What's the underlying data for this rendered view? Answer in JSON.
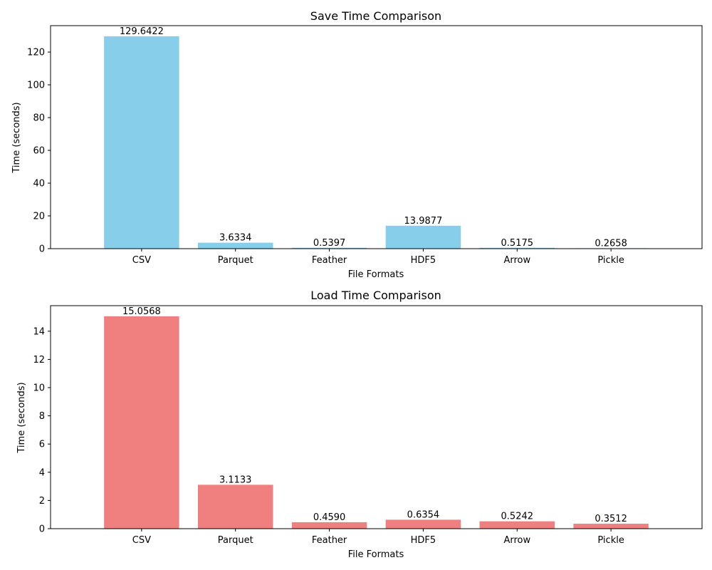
{
  "chart_data": [
    {
      "type": "bar",
      "title": "Save Time Comparison",
      "xlabel": "File Formats",
      "ylabel": "Time (seconds)",
      "categories": [
        "CSV",
        "Parquet",
        "Feather",
        "HDF5",
        "Arrow",
        "Pickle"
      ],
      "values": [
        129.6422,
        3.6334,
        0.5397,
        13.9877,
        0.5175,
        0.2658
      ],
      "value_labels": [
        "129.6422",
        "3.6334",
        "0.5397",
        "13.9877",
        "0.5175",
        "0.2658"
      ],
      "ylim": [
        0,
        136.12
      ],
      "yticks": [
        0,
        20,
        40,
        60,
        80,
        100,
        120
      ],
      "ytick_labels": [
        "0",
        "20",
        "40",
        "60",
        "80",
        "100",
        "120"
      ],
      "bar_color": "#87CEEB",
      "grid": false,
      "legend": false
    },
    {
      "type": "bar",
      "title": "Load Time Comparison",
      "xlabel": "File Formats",
      "ylabel": "Time (seconds)",
      "categories": [
        "CSV",
        "Parquet",
        "Feather",
        "HDF5",
        "Arrow",
        "Pickle"
      ],
      "values": [
        15.0568,
        3.1133,
        0.459,
        0.6354,
        0.5242,
        0.3512
      ],
      "value_labels": [
        "15.0568",
        "3.1133",
        "0.4590",
        "0.6354",
        "0.5242",
        "0.3512"
      ],
      "ylim": [
        0,
        15.81
      ],
      "yticks": [
        0,
        2,
        4,
        6,
        8,
        10,
        12,
        14
      ],
      "ytick_labels": [
        "0",
        "2",
        "4",
        "6",
        "8",
        "10",
        "12",
        "14"
      ],
      "bar_color": "#F08080",
      "grid": false,
      "legend": false
    }
  ]
}
